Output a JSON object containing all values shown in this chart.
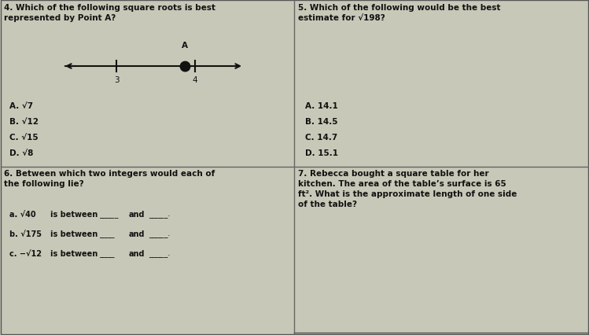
{
  "bg_color": "#c8c8b8",
  "text_color": "#111111",
  "border_color": "#666666",
  "fs": 7.5,
  "fs_small": 7.0,
  "q4_line1": "4. Which of the following square roots is best",
  "q4_line2": "represented by Point A?",
  "q5_line1": "5. Which of the following would be the best",
  "q5_line2": "estimate for √198?",
  "q4_options": [
    "A. √7",
    "B. √12",
    "C. √15",
    "D. √8"
  ],
  "q5_options": [
    "A. 14.1",
    "B. 14.5",
    "C. 14.7",
    "D. 15.1"
  ],
  "q6_line1": "6. Between which two integers would each of",
  "q6_line2": "the following lie?",
  "q6_parts": [
    [
      "a. √40",
      "is between",
      "_____",
      "and",
      "_____."
    ],
    [
      "b. √175",
      "is between",
      "____",
      "and",
      "_____."
    ],
    [
      "c. −√12",
      "is between",
      "____",
      "and",
      "_____."
    ]
  ],
  "q7_line1": "7. Rebecca bought a square table for her",
  "q7_line2": "kitchen. The area of the table’s surface is 65",
  "q7_line3": "ft². What is the approximate length of one side",
  "q7_line4": "of the table?"
}
